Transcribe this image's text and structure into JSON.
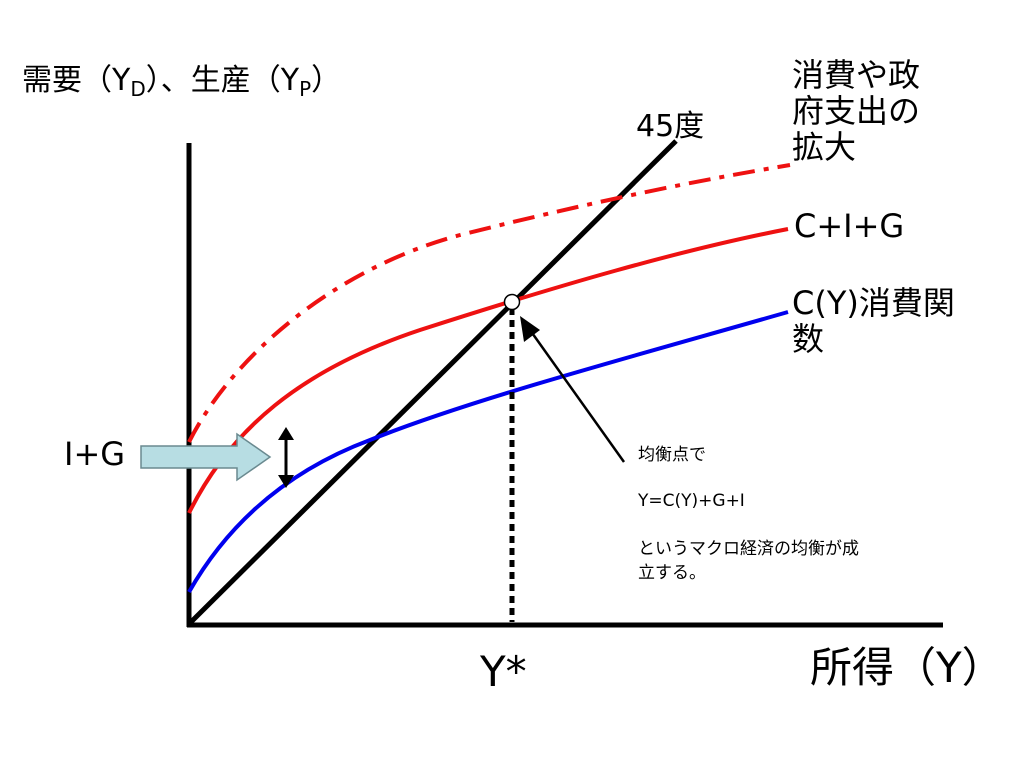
{
  "y_axis_label": {
    "main": "需要（Y",
    "sub1": "D",
    "mid": "）、生産（Y",
    "sub2": "P",
    "end": "）"
  },
  "x_axis_label": "所得（Y）",
  "line45_label": "45度",
  "shift_label": "消費や政\n府支出の\n拡大",
  "cig_label": "C+I+G",
  "cy_label": "C(Y)消費関\n数",
  "ig_label": "I+G",
  "ystar_label": "Y*",
  "note": {
    "line1": "均衡点で",
    "line2": "Y=C(Y)+G+I",
    "line3": "というマクロ経済の均衡が成\n立する。"
  },
  "colors": {
    "axis": "#000000",
    "line45": "#000000",
    "consumption": "#0000ee",
    "cig": "#ee1111",
    "shifted": "#ee1111",
    "arrow_fill": "#b7dde3",
    "arrow_stroke": "#6a8a90"
  }
}
